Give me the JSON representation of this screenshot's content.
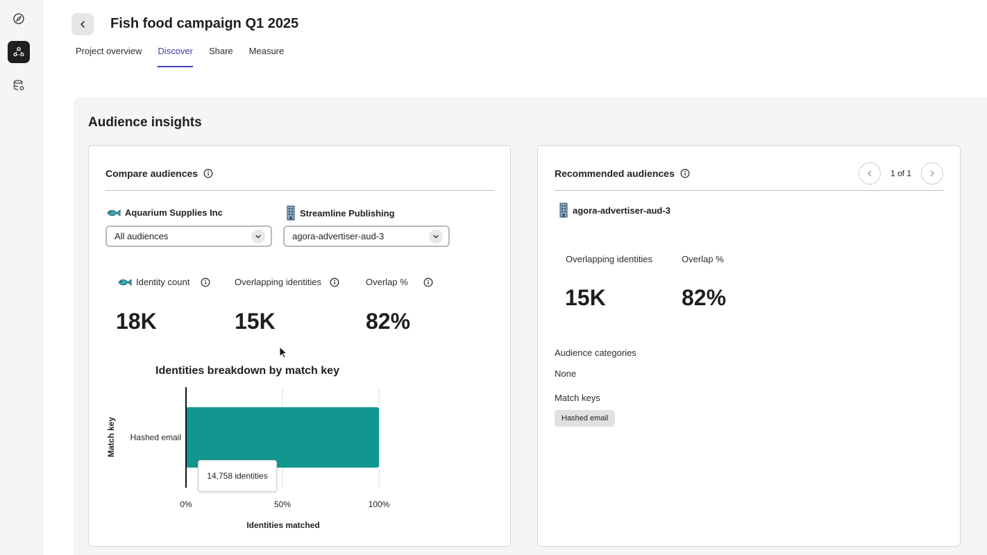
{
  "page": {
    "title": "Fish food campaign Q1 2025",
    "tabs": [
      {
        "label": "Project overview",
        "active": false
      },
      {
        "label": "Discover",
        "active": true
      },
      {
        "label": "Share",
        "active": false
      },
      {
        "label": "Measure",
        "active": false
      }
    ],
    "section_title": "Audience insights"
  },
  "rail": {
    "icons": [
      "compass-icon",
      "audience-icon",
      "database-settings-icon"
    ],
    "active_index": 1
  },
  "compare": {
    "title": "Compare audiences",
    "left_org": {
      "name": "Aquarium Supplies Inc",
      "icon": "fish-icon",
      "selected": "All audiences"
    },
    "right_org": {
      "name": "Streamline Publishing",
      "icon": "building-icon",
      "selected": "agora-advertiser-aud-3"
    },
    "metrics": [
      {
        "label": "Identity count",
        "value": "18K"
      },
      {
        "label": "Overlapping identities",
        "value": "15K"
      },
      {
        "label": "Overlap %",
        "value": "82%"
      }
    ]
  },
  "chart_data": {
    "type": "bar",
    "orientation": "horizontal",
    "title": "Identities breakdown by match key",
    "xlabel": "Identities matched",
    "ylabel": "Match key",
    "categories": [
      "Hashed email"
    ],
    "values": [
      100
    ],
    "xlim": [
      0,
      100
    ],
    "x_ticks": [
      "0%",
      "50%",
      "100%"
    ],
    "bar_color": "#129690",
    "tooltip": "14,758 identities",
    "grid": true
  },
  "recommended": {
    "title": "Recommended audiences",
    "pager": "1 of 1",
    "audience": {
      "name": "agora-advertiser-aud-3",
      "icon": "building-icon"
    },
    "metrics": [
      {
        "label": "Overlapping identities",
        "value": "15K"
      },
      {
        "label": "Overlap %",
        "value": "82%"
      }
    ],
    "categories_label": "Audience categories",
    "categories_value": "None",
    "match_keys_label": "Match keys",
    "match_keys": [
      "Hashed email"
    ]
  },
  "colors": {
    "accent": "#3d3bb0",
    "bar": "#129690",
    "panel_bg": "#f5f5f5"
  }
}
